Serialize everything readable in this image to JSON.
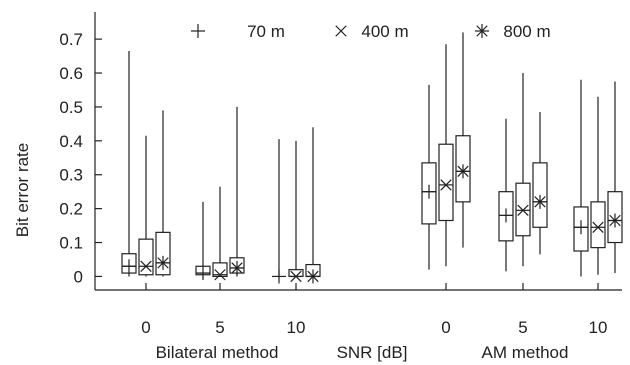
{
  "chart_data": {
    "type": "boxplot",
    "ylabel": "Bit error rate",
    "xlabel": "SNR [dB]",
    "ylim": [
      -0.04,
      0.78
    ],
    "y_ticks": [
      0,
      0.1,
      0.2,
      0.3,
      0.4,
      0.5,
      0.6,
      0.7
    ],
    "y_tick_labels": [
      "0",
      "0.1",
      "0.2",
      "0.3",
      "0.4",
      "0.5",
      "0.6",
      "0.7"
    ],
    "grid": false,
    "legend_position": "top",
    "legend": [
      {
        "name": "70 m",
        "marker": "plus"
      },
      {
        "name": "400 m",
        "marker": "cross"
      },
      {
        "name": "800 m",
        "marker": "star"
      }
    ],
    "groups": [
      {
        "name": "Bilateral method",
        "snr_ticks": [
          "0",
          "5",
          "10"
        ]
      },
      {
        "name": "AM method",
        "snr_ticks": [
          "0",
          "5",
          "10"
        ]
      }
    ],
    "boxes": [
      {
        "group": 0,
        "snr": "0",
        "series": "70 m",
        "min": 0,
        "q1": 0.01,
        "median": 0.03,
        "q3": 0.067,
        "max": 0.665,
        "mean": 0.03
      },
      {
        "group": 0,
        "snr": "0",
        "series": "400 m",
        "min": 0,
        "q1": 0.005,
        "median": 0.03,
        "q3": 0.11,
        "max": 0.415,
        "mean": 0.03
      },
      {
        "group": 0,
        "snr": "0",
        "series": "800 m",
        "min": 0,
        "q1": 0.005,
        "median": 0.04,
        "q3": 0.13,
        "max": 0.49,
        "mean": 0.04
      },
      {
        "group": 0,
        "snr": "5",
        "series": "70 m",
        "min": 0,
        "q1": 0.005,
        "median": 0.01,
        "q3": 0.03,
        "max": 0.22,
        "mean": 0.01
      },
      {
        "group": 0,
        "snr": "5",
        "series": "400 m",
        "min": 0,
        "q1": 0.0,
        "median": 0.005,
        "q3": 0.04,
        "max": 0.265,
        "mean": 0.005
      },
      {
        "group": 0,
        "snr": "5",
        "series": "800 m",
        "min": 0,
        "q1": 0.01,
        "median": 0.025,
        "q3": 0.055,
        "max": 0.5,
        "mean": 0.025
      },
      {
        "group": 0,
        "snr": "10",
        "series": "70 m",
        "min": 0,
        "q1": 0,
        "median": 0,
        "q3": 0,
        "max": 0.405,
        "mean": 0
      },
      {
        "group": 0,
        "snr": "10",
        "series": "400 m",
        "min": 0,
        "q1": 0.0,
        "median": 0.0,
        "q3": 0.02,
        "max": 0.4,
        "mean": 0.0
      },
      {
        "group": 0,
        "snr": "10",
        "series": "800 m",
        "min": 0,
        "q1": 0.0,
        "median": 0.0,
        "q3": 0.035,
        "max": 0.44,
        "mean": 0.0
      },
      {
        "group": 1,
        "snr": "0",
        "series": "70 m",
        "min": 0.02,
        "q1": 0.155,
        "median": 0.25,
        "q3": 0.335,
        "max": 0.565,
        "mean": 0.25
      },
      {
        "group": 1,
        "snr": "0",
        "series": "400 m",
        "min": 0.03,
        "q1": 0.165,
        "median": 0.27,
        "q3": 0.39,
        "max": 0.685,
        "mean": 0.27
      },
      {
        "group": 1,
        "snr": "0",
        "series": "800 m",
        "min": 0.085,
        "q1": 0.22,
        "median": 0.31,
        "q3": 0.415,
        "max": 0.72,
        "mean": 0.31
      },
      {
        "group": 1,
        "snr": "5",
        "series": "70 m",
        "min": 0.015,
        "q1": 0.105,
        "median": 0.18,
        "q3": 0.25,
        "max": 0.465,
        "mean": 0.18
      },
      {
        "group": 1,
        "snr": "5",
        "series": "400 m",
        "min": 0.03,
        "q1": 0.12,
        "median": 0.195,
        "q3": 0.275,
        "max": 0.6,
        "mean": 0.195
      },
      {
        "group": 1,
        "snr": "5",
        "series": "800 m",
        "min": 0.065,
        "q1": 0.145,
        "median": 0.22,
        "q3": 0.335,
        "max": 0.485,
        "mean": 0.22
      },
      {
        "group": 1,
        "snr": "10",
        "series": "70 m",
        "min": 0.0,
        "q1": 0.075,
        "median": 0.145,
        "q3": 0.205,
        "max": 0.58,
        "mean": 0.145
      },
      {
        "group": 1,
        "snr": "10",
        "series": "400 m",
        "min": 0.005,
        "q1": 0.085,
        "median": 0.145,
        "q3": 0.22,
        "max": 0.53,
        "mean": 0.145
      },
      {
        "group": 1,
        "snr": "10",
        "series": "800 m",
        "min": 0.01,
        "q1": 0.1,
        "median": 0.165,
        "q3": 0.25,
        "max": 0.575,
        "mean": 0.165
      }
    ]
  }
}
